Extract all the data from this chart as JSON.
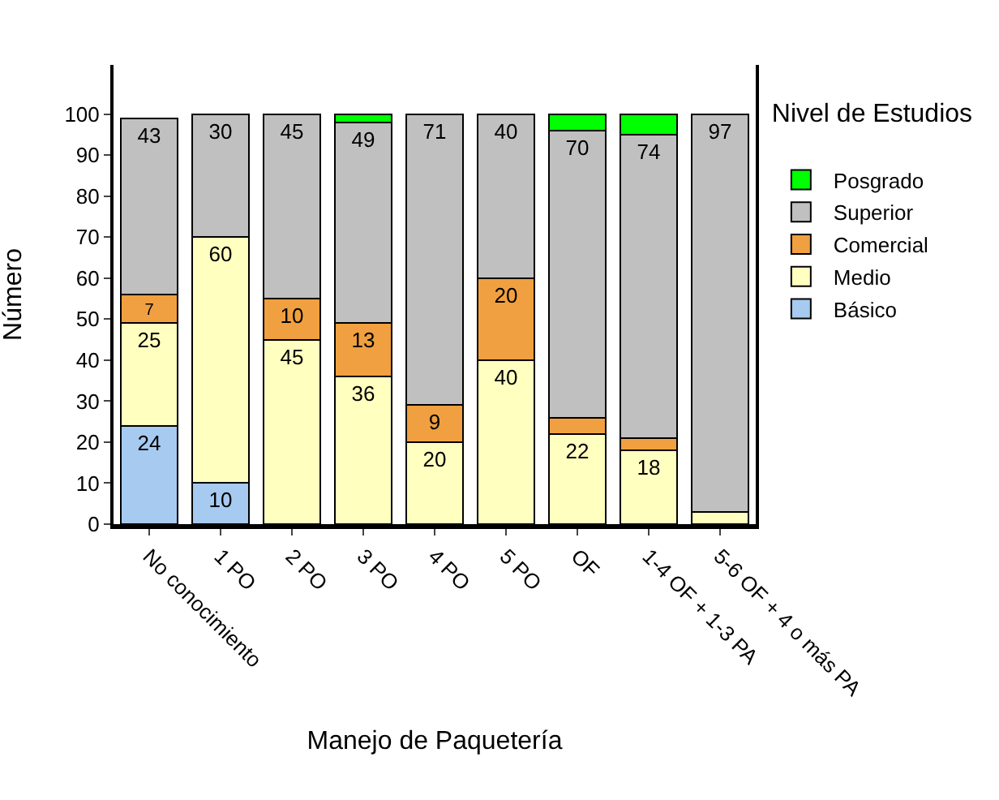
{
  "chart_data": {
    "type": "bar",
    "stacked": true,
    "xlabel": "Manejo de Paquetería",
    "ylabel": "Número",
    "legend_title": "Nivel de Estudios",
    "legend": "right",
    "grid": false,
    "categories": [
      "No conocimiento",
      "1 PO",
      "2 PO",
      "3 PO",
      "4 PO",
      "5 PO",
      "OF",
      "1-4 OF + 1-3 PA",
      "5-6 OF + 4 o más PA"
    ],
    "ylim": [
      0,
      112
    ],
    "yticks": [
      0,
      10,
      20,
      30,
      40,
      50,
      60,
      70,
      80,
      90,
      100
    ],
    "series": [
      {
        "name": "Básico",
        "color": "#a6caf0",
        "values": [
          24,
          10,
          null,
          null,
          null,
          null,
          null,
          null,
          null
        ],
        "value_labels": [
          "24",
          "10",
          null,
          null,
          null,
          null,
          null,
          null,
          null
        ]
      },
      {
        "name": "Medio",
        "color": "#ffffc0",
        "values": [
          25,
          60,
          45,
          36,
          20,
          40,
          22,
          18,
          3
        ],
        "value_labels": [
          "25",
          "60",
          "45",
          "36",
          "20",
          "40",
          "22",
          "18",
          null
        ]
      },
      {
        "name": "Comercial",
        "color": "#f0a040",
        "values": [
          7,
          null,
          10,
          13,
          9,
          20,
          4,
          3,
          null
        ],
        "value_labels": [
          "7",
          null,
          "10",
          "13",
          "9",
          "20",
          null,
          null,
          null
        ]
      },
      {
        "name": "Superior",
        "color": "#c0c0c0",
        "values": [
          43,
          30,
          45,
          49,
          71,
          40,
          70,
          74,
          97
        ],
        "value_labels": [
          "43",
          "30",
          "45",
          "49",
          "71",
          "40",
          "70",
          "74",
          "97"
        ]
      },
      {
        "name": "Posgrado",
        "color": "#00ff00",
        "values": [
          null,
          null,
          null,
          2,
          null,
          null,
          4,
          5,
          null
        ],
        "value_labels": [
          null,
          null,
          null,
          null,
          null,
          null,
          null,
          null,
          null
        ]
      }
    ]
  }
}
